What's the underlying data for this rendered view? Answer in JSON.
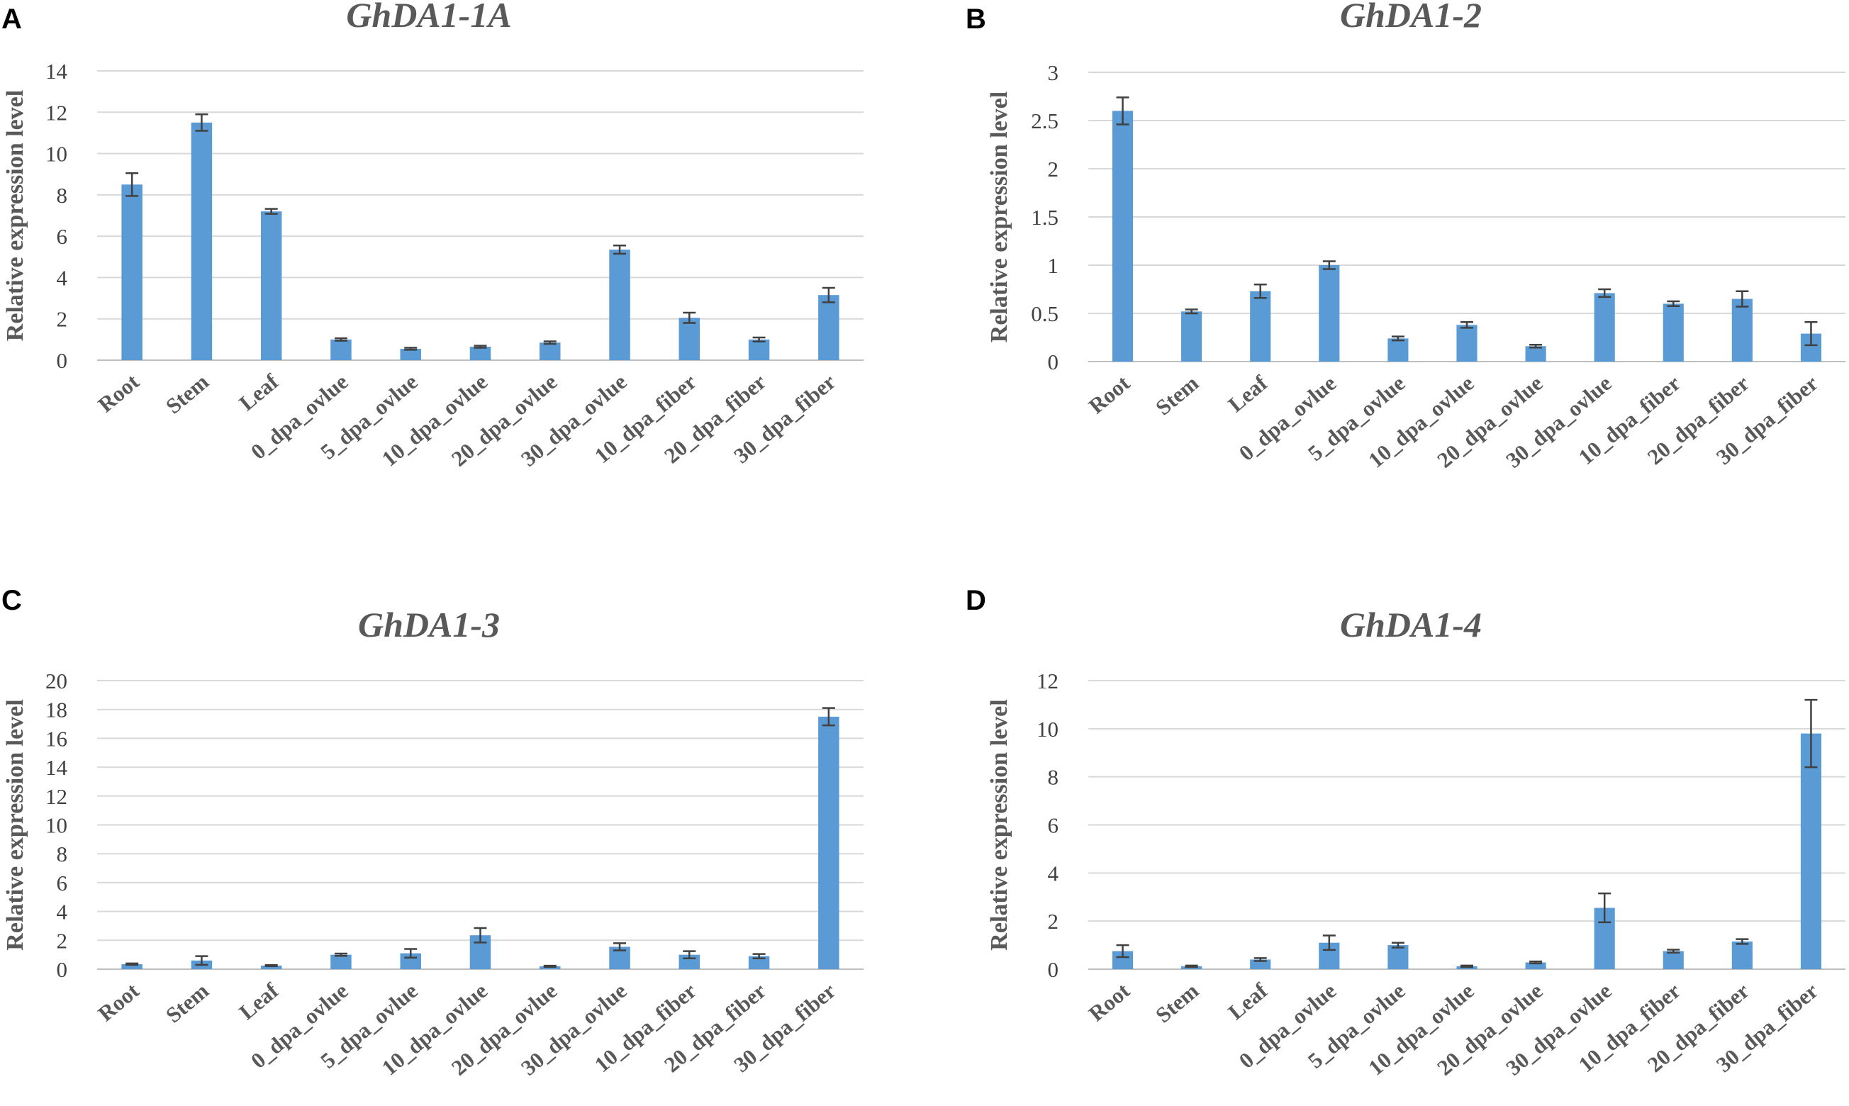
{
  "chart_data": [
    {
      "type": "bar",
      "panel": "A",
      "title": "GhDA1-1A",
      "ylabel": "Relative  expression level",
      "xlabel": "",
      "categories": [
        "Root",
        "Stem",
        "Leaf",
        "0_dpa_ovlue",
        "5_dpa_ovlue",
        "10_dpa_ovlue",
        "20_dpa_ovlue",
        "30_dpa_ovlue",
        "10_dpa_fiber",
        "20_dpa_fiber",
        "30_dpa_fiber"
      ],
      "values": [
        8.5,
        11.5,
        7.2,
        1.0,
        0.55,
        0.65,
        0.85,
        5.35,
        2.05,
        1.0,
        3.15
      ],
      "errors": [
        0.55,
        0.4,
        0.12,
        0.06,
        0.05,
        0.05,
        0.06,
        0.2,
        0.25,
        0.1,
        0.35
      ],
      "ylim": [
        0,
        14
      ],
      "yticks": [
        0,
        2,
        4,
        6,
        8,
        10,
        12,
        14
      ],
      "grid": true,
      "color": "#5b9bd5"
    },
    {
      "type": "bar",
      "panel": "B",
      "title": "GhDA1-2",
      "ylabel": "Relative  expression level",
      "xlabel": "",
      "categories": [
        "Root",
        "Stem",
        "Leaf",
        "0_dpa_ovlue",
        "5_dpa_ovlue",
        "10_dpa_ovlue",
        "20_dpa_ovlue",
        "30_dpa_ovlue",
        "10_dpa_fiber",
        "20_dpa_fiber",
        "30_dpa_fiber"
      ],
      "values": [
        2.6,
        0.52,
        0.73,
        1.0,
        0.24,
        0.38,
        0.16,
        0.71,
        0.6,
        0.65,
        0.29
      ],
      "errors": [
        0.14,
        0.02,
        0.07,
        0.04,
        0.02,
        0.03,
        0.015,
        0.04,
        0.025,
        0.08,
        0.12
      ],
      "ylim": [
        0,
        3
      ],
      "yticks": [
        0,
        0.5,
        1,
        1.5,
        2,
        2.5,
        3
      ],
      "ytick_labels": [
        "0",
        "0.5",
        "1",
        "1.5",
        "2",
        "2.5",
        "3"
      ],
      "grid": true,
      "color": "#5b9bd5"
    },
    {
      "type": "bar",
      "panel": "C",
      "title": "GhDA1-3",
      "ylabel": "Relative  expression level",
      "xlabel": "",
      "categories": [
        "Root",
        "Stem",
        "Leaf",
        "0_dpa_ovlue",
        "5_dpa_ovlue",
        "10_dpa_ovlue",
        "20_dpa_ovlue",
        "30_dpa_ovlue",
        "10_dpa_fiber",
        "20_dpa_fiber",
        "30_dpa_fiber"
      ],
      "values": [
        0.35,
        0.6,
        0.25,
        1.0,
        1.1,
        2.35,
        0.2,
        1.55,
        1.0,
        0.9,
        17.5
      ],
      "errors": [
        0.05,
        0.3,
        0.04,
        0.08,
        0.3,
        0.5,
        0.04,
        0.25,
        0.25,
        0.15,
        0.6
      ],
      "ylim": [
        0,
        20
      ],
      "yticks": [
        0,
        2,
        4,
        6,
        8,
        10,
        12,
        14,
        16,
        18,
        20
      ],
      "grid": true,
      "color": "#5b9bd5"
    },
    {
      "type": "bar",
      "panel": "D",
      "title": "GhDA1-4",
      "ylabel": "Relative  expression level",
      "xlabel": "",
      "categories": [
        "Root",
        "Stem",
        "Leaf",
        "0_dpa_ovlue",
        "5_dpa_ovlue",
        "10_dpa_ovlue",
        "20_dpa_ovlue",
        "30_dpa_ovlue",
        "10_dpa_fiber",
        "20_dpa_fiber",
        "30_dpa_fiber"
      ],
      "values": [
        0.75,
        0.12,
        0.4,
        1.1,
        1.0,
        0.12,
        0.28,
        2.55,
        0.75,
        1.15,
        9.8
      ],
      "errors": [
        0.25,
        0.03,
        0.06,
        0.3,
        0.1,
        0.03,
        0.04,
        0.6,
        0.06,
        0.1,
        1.4
      ],
      "ylim": [
        0,
        12
      ],
      "yticks": [
        0,
        2,
        4,
        6,
        8,
        10,
        12
      ],
      "grid": true,
      "color": "#5b9bd5"
    }
  ]
}
